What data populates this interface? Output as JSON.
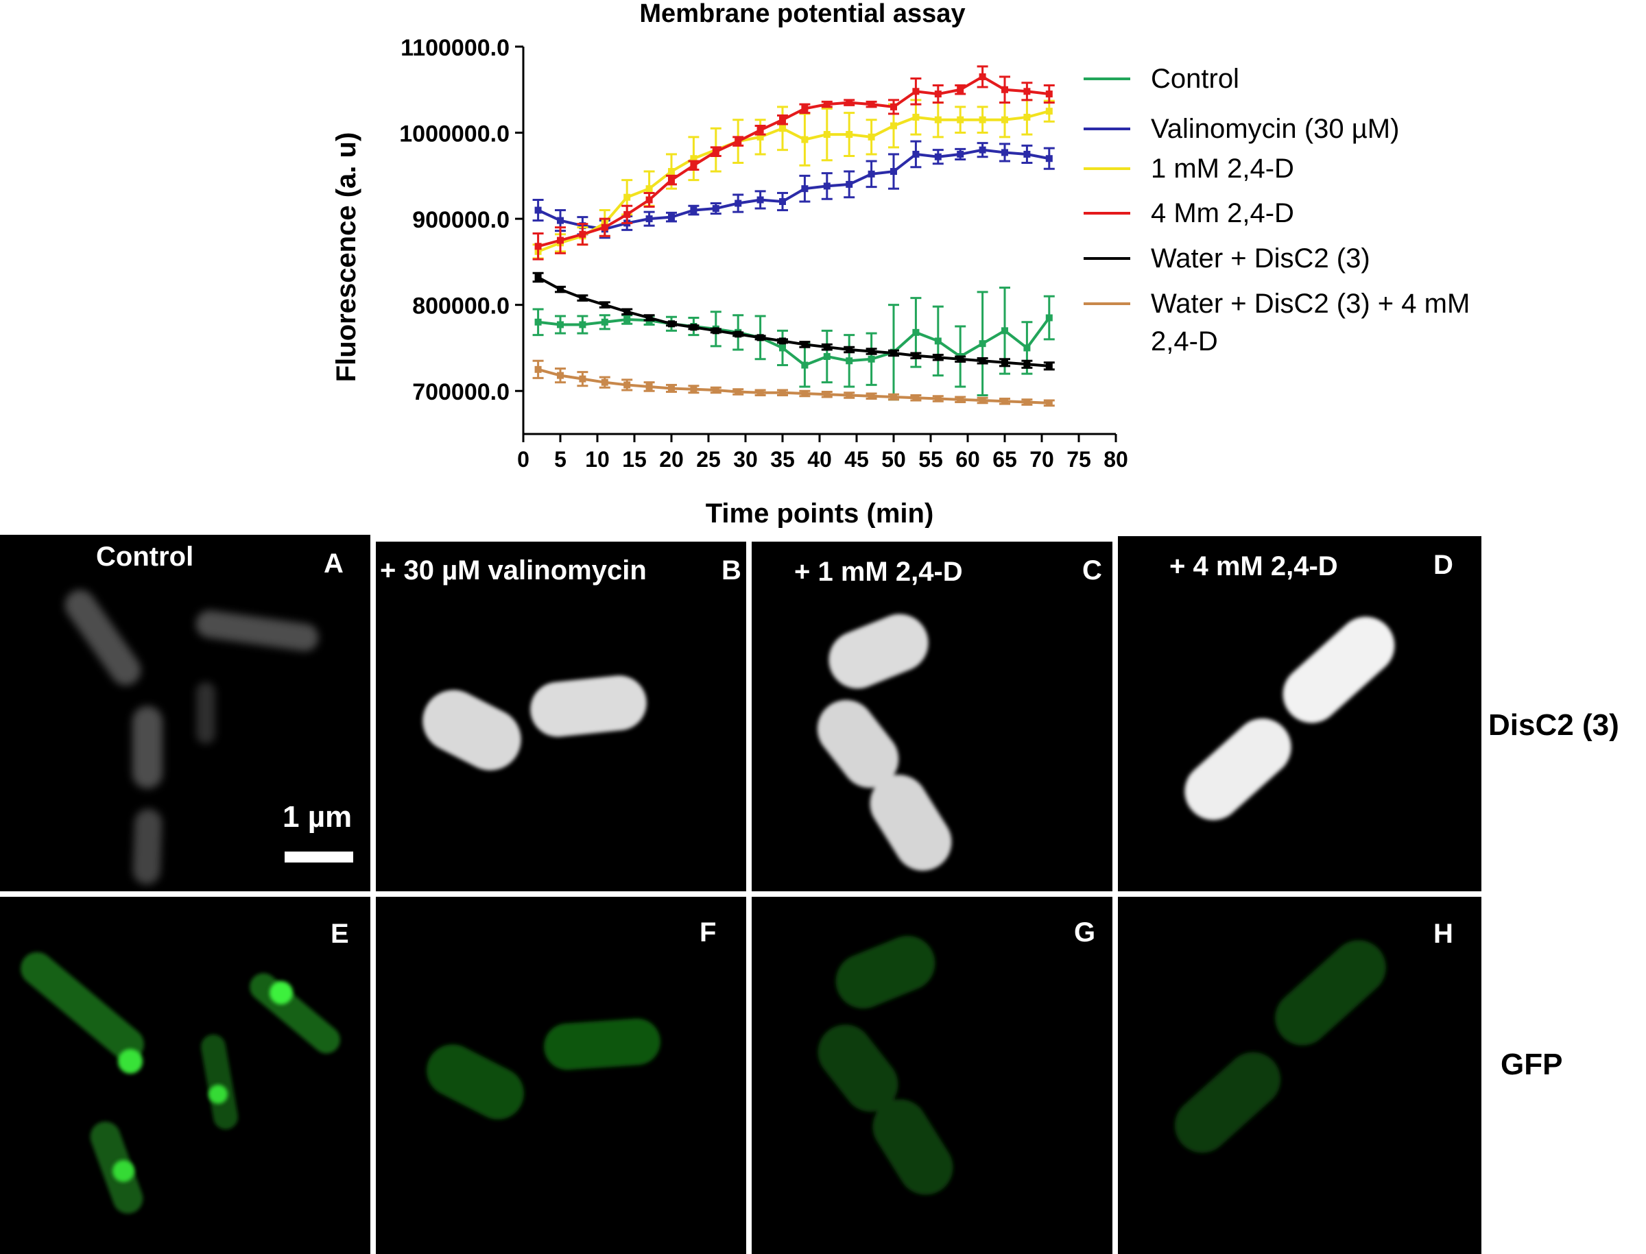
{
  "chart_data": {
    "type": "line",
    "title": "Membrane potential assay",
    "xlabel": "Time points (min)",
    "ylabel": "Fluorescence (a. u)",
    "xlim": [
      0,
      80
    ],
    "ylim": [
      650000,
      1100000
    ],
    "xticks": [
      0,
      5,
      10,
      15,
      20,
      25,
      30,
      35,
      40,
      45,
      50,
      55,
      60,
      65,
      70,
      75,
      80
    ],
    "yticks": [
      700000,
      800000,
      900000,
      1000000,
      1100000
    ],
    "ytick_labels": [
      "700000.0",
      "800000.0",
      "900000.0",
      "1000000.0",
      "1100000.0"
    ],
    "legend_position": "right",
    "x": [
      2,
      5,
      8,
      11,
      14,
      17,
      20,
      23,
      26,
      29,
      32,
      35,
      38,
      41,
      44,
      47,
      50,
      53,
      56,
      59,
      62,
      65,
      68,
      71
    ],
    "series": [
      {
        "name": "Control",
        "color": "#22a55a",
        "values": [
          780000,
          777000,
          777000,
          780000,
          783000,
          782000,
          778000,
          775000,
          772000,
          768000,
          762000,
          750000,
          730000,
          740000,
          735000,
          737000,
          745000,
          768000,
          758000,
          740000,
          755000,
          770000,
          750000,
          785000
        ],
        "errors": [
          15000,
          10000,
          10000,
          8000,
          5000,
          5000,
          8000,
          10000,
          20000,
          20000,
          25000,
          20000,
          25000,
          30000,
          30000,
          30000,
          55000,
          40000,
          40000,
          35000,
          60000,
          50000,
          30000,
          25000
        ]
      },
      {
        "name": "Valinomycin (30 µM)",
        "color": "#2b2ba8",
        "values": [
          910000,
          898000,
          892000,
          888000,
          895000,
          900000,
          902000,
          910000,
          912000,
          918000,
          922000,
          920000,
          935000,
          938000,
          940000,
          952000,
          955000,
          975000,
          972000,
          975000,
          980000,
          977000,
          975000,
          970000
        ],
        "errors": [
          12000,
          12000,
          10000,
          10000,
          8000,
          8000,
          5000,
          5000,
          6000,
          10000,
          10000,
          10000,
          15000,
          15000,
          15000,
          15000,
          20000,
          15000,
          8000,
          6000,
          8000,
          10000,
          10000,
          12000
        ]
      },
      {
        "name": "1 mM 2,4-D",
        "color": "#f2e21e",
        "values": [
          862000,
          872000,
          880000,
          895000,
          925000,
          935000,
          955000,
          970000,
          980000,
          990000,
          995000,
          1005000,
          992000,
          998000,
          998000,
          995000,
          1008000,
          1018000,
          1015000,
          1015000,
          1015000,
          1015000,
          1018000,
          1025000
        ],
        "errors": [
          8000,
          10000,
          10000,
          15000,
          20000,
          20000,
          20000,
          25000,
          25000,
          25000,
          20000,
          25000,
          30000,
          30000,
          25000,
          20000,
          25000,
          20000,
          20000,
          15000,
          15000,
          20000,
          20000,
          12000
        ]
      },
      {
        "name": "4 Mm 2,4-D",
        "color": "#e41a1c",
        "values": [
          868000,
          875000,
          882000,
          890000,
          905000,
          922000,
          945000,
          962000,
          978000,
          990000,
          1003000,
          1015000,
          1028000,
          1033000,
          1035000,
          1033000,
          1030000,
          1048000,
          1045000,
          1050000,
          1065000,
          1050000,
          1048000,
          1045000
        ],
        "errors": [
          15000,
          15000,
          12000,
          10000,
          10000,
          8000,
          5000,
          5000,
          5000,
          5000,
          5000,
          5000,
          5000,
          3000,
          3000,
          3000,
          8000,
          15000,
          10000,
          5000,
          12000,
          15000,
          10000,
          10000
        ]
      },
      {
        "name": "Water + DisC2 (3)",
        "color": "#000000",
        "values": [
          832000,
          818000,
          808000,
          800000,
          792000,
          785000,
          778000,
          774000,
          770000,
          766000,
          762000,
          758000,
          754000,
          751000,
          748000,
          746000,
          744000,
          741000,
          739000,
          737000,
          735000,
          733000,
          731000,
          729000
        ],
        "errors": [
          5000,
          3000,
          3000,
          3000,
          3000,
          3000,
          2000,
          2000,
          2000,
          2000,
          2000,
          2000,
          3000,
          3000,
          3000,
          3000,
          3000,
          3000,
          3000,
          3000,
          3000,
          4000,
          4000,
          4000
        ]
      },
      {
        "name": "Water + DisC2 (3) + 4 mM 2,4-D",
        "color": "#c8884b",
        "values": [
          725000,
          718000,
          714000,
          710000,
          707000,
          705000,
          703000,
          702000,
          701000,
          699000,
          698000,
          698000,
          697000,
          696000,
          695000,
          694000,
          693000,
          692000,
          691000,
          690000,
          689000,
          688000,
          687000,
          686000
        ],
        "errors": [
          10000,
          8000,
          8000,
          6000,
          6000,
          5000,
          4000,
          4000,
          3000,
          3000,
          3000,
          3000,
          3000,
          3000,
          3000,
          3000,
          3000,
          3000,
          3000,
          3000,
          3000,
          3000,
          3000,
          3000
        ]
      }
    ]
  },
  "legend_lines": {
    "control": "Control",
    "valinomycin": "Valinomycin (30 µM)",
    "d1": "1 mM 2,4-D",
    "d4": "4 Mm 2,4-D",
    "water": "Water + DisC2 (3)",
    "water_d_line1": "Water + DisC2 (3) + 4 mM",
    "water_d_line2": "2,4-D"
  },
  "panels": {
    "A": {
      "letter": "A",
      "label": "Control"
    },
    "B": {
      "letter": "B",
      "label": "+ 30 µM valinomycin"
    },
    "C": {
      "letter": "C",
      "label": "+ 1 mM 2,4-D"
    },
    "D": {
      "letter": "D",
      "label": "+ 4 mM 2,4-D"
    },
    "E": {
      "letter": "E"
    },
    "F": {
      "letter": "F"
    },
    "G": {
      "letter": "G"
    },
    "H": {
      "letter": "H"
    }
  },
  "row_labels": {
    "top": "DisC2 (3)",
    "bottom": "GFP"
  },
  "scale_bar": "1 µm"
}
